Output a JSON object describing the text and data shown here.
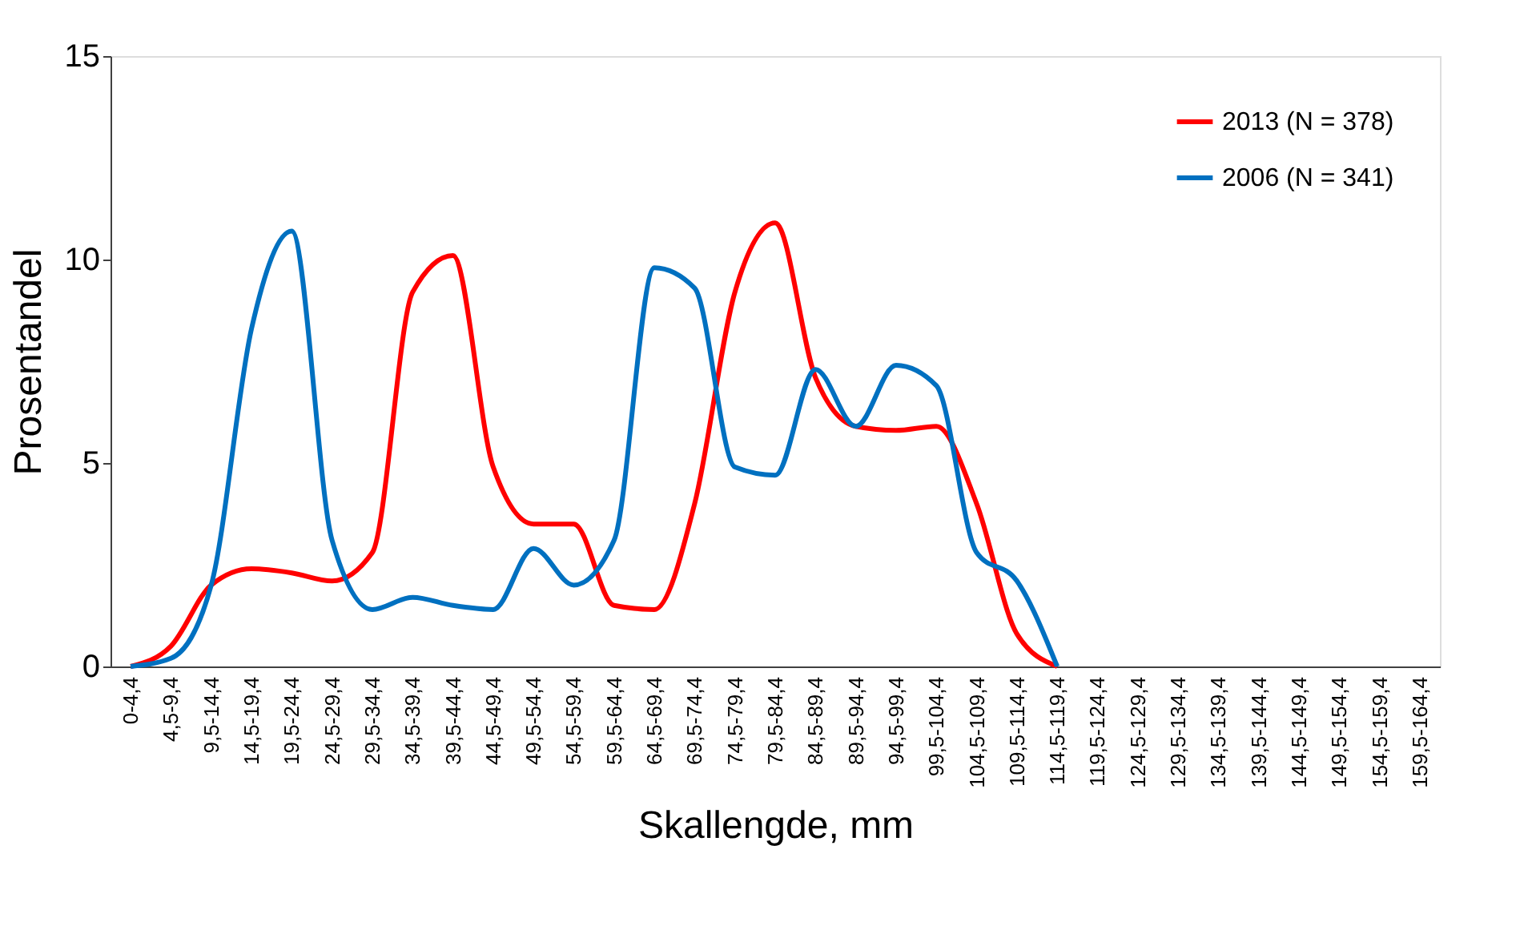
{
  "chart_data": {
    "type": "line",
    "xlabel": "Skallengde, mm",
    "ylabel": "Prosentandel",
    "categories": [
      "0-4,4",
      "4,5-9,4",
      "9,5-14,4",
      "14,5-19,4",
      "19,5-24,4",
      "24,5-29,4",
      "29,5-34,4",
      "34,5-39,4",
      "39,5-44,4",
      "44,5-49,4",
      "49,5-54,4",
      "54,5-59,4",
      "59,5-64,4",
      "64,5-69,4",
      "69,5-74,4",
      "74,5-79,4",
      "79,5-84,4",
      "84,5-89,4",
      "89,5-94,4",
      "94,5-99,4",
      "99,5-104,4",
      "104,5-109,4",
      "109,5-114,4",
      "114,5-119,4",
      "119,5-124,4",
      "124,5-129,4",
      "129,5-134,4",
      "134,5-139,4",
      "139,5-144,4",
      "144,5-149,4",
      "149,5-154,4",
      "154,5-159,4",
      "159,5-164,4"
    ],
    "series": [
      {
        "name": "2013 (N = 378)",
        "color": "#ff0000",
        "values": [
          0,
          0.5,
          2.0,
          2.4,
          2.3,
          2.1,
          2.8,
          9.2,
          10.1,
          4.9,
          3.5,
          3.5,
          1.5,
          1.4,
          4.0,
          9.2,
          10.9,
          7.1,
          5.9,
          5.8,
          5.9,
          4.0,
          0.8,
          0,
          null,
          null,
          null,
          null,
          null,
          null,
          null,
          null,
          null
        ]
      },
      {
        "name": "2006 (N = 341)",
        "color": "#0070c0",
        "values": [
          0,
          0.2,
          2.0,
          8.3,
          10.7,
          3.1,
          1.4,
          1.7,
          1.5,
          1.4,
          2.9,
          2.0,
          3.1,
          9.8,
          9.3,
          4.9,
          4.7,
          7.3,
          5.9,
          7.4,
          6.9,
          2.8,
          2.1,
          0,
          null,
          null,
          null,
          null,
          null,
          null,
          null,
          null,
          null
        ]
      }
    ],
    "ylim": [
      0,
      15
    ],
    "yticks": [
      0,
      5,
      10,
      15
    ],
    "grid": false,
    "legend": "top right",
    "marker": "none",
    "line_style": "solid"
  }
}
